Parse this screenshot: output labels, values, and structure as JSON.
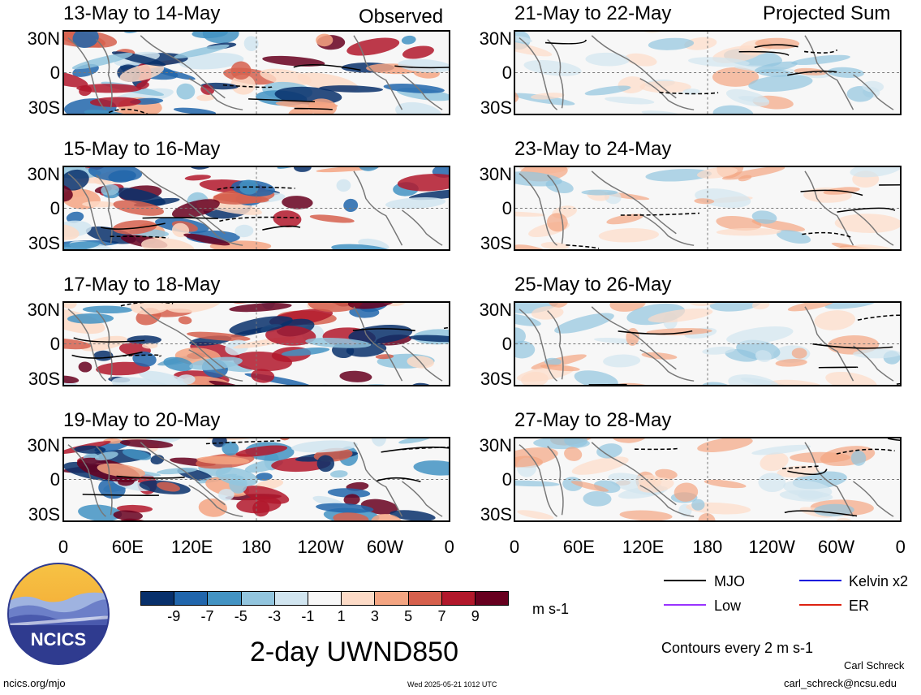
{
  "headers": {
    "left": "Observed",
    "right": "Projected Sum"
  },
  "panels": [
    {
      "title": "13-May to 14-May",
      "column": "observed",
      "seed": 3
    },
    {
      "title": "15-May to 16-May",
      "column": "observed",
      "seed": 7
    },
    {
      "title": "17-May to 18-May",
      "column": "observed",
      "seed": 11
    },
    {
      "title": "19-May to 20-May",
      "column": "observed",
      "seed": 17
    },
    {
      "title": "21-May to 22-May",
      "column": "projected",
      "seed": 23
    },
    {
      "title": "23-May to 24-May",
      "column": "projected",
      "seed": 29
    },
    {
      "title": "25-May to 26-May",
      "column": "projected",
      "seed": 31
    },
    {
      "title": "27-May to 28-May",
      "column": "projected",
      "seed": 37
    }
  ],
  "y_axis_labels": [
    "30N",
    "0",
    "30S"
  ],
  "x_axis_labels": [
    "0",
    "60E",
    "120E",
    "180",
    "120W",
    "60W",
    "0"
  ],
  "colorbar": {
    "labels": [
      "-9",
      "-7",
      "-5",
      "-3",
      "-1",
      "1",
      "3",
      "5",
      "7",
      "9"
    ],
    "colors": [
      "#08306b",
      "#2166ac",
      "#4393c3",
      "#92c5de",
      "#d1e5f0",
      "#f7f7f7",
      "#fddbc7",
      "#f4a582",
      "#d6604d",
      "#b2182b",
      "#67001f"
    ],
    "unit": "m s-1"
  },
  "legend": {
    "items": [
      {
        "label": "MJO",
        "color": "#000000"
      },
      {
        "label": "Kelvin x2",
        "color": "#0000dd"
      },
      {
        "label": "Low",
        "color": "#9933ff"
      },
      {
        "label": "ER",
        "color": "#dd2211"
      }
    ],
    "contour_note": "Contours every 2 m s-1"
  },
  "main_title": "2-day UWND850",
  "logo": {
    "text": "NCICS"
  },
  "footer": {
    "url": "ncics.org/mjo",
    "timestamp": "Wed 2025-05-21 1012 UTC",
    "author": "Carl Schreck",
    "email": "carl_schreck@ncsu.edu"
  }
}
